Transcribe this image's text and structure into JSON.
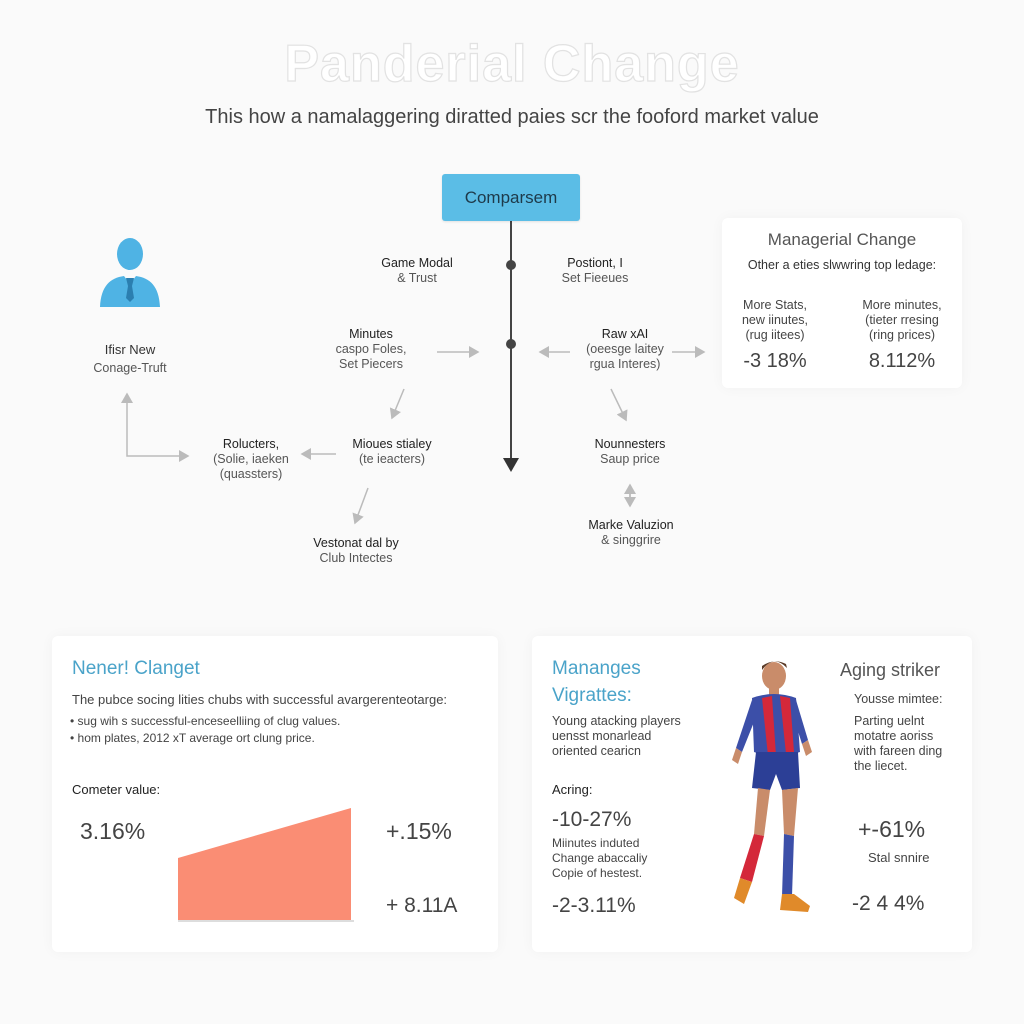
{
  "header": {
    "title": "Panderial Change",
    "subtitle": "This how a namalaggering diratted paies scr the fooford market value"
  },
  "diagram": {
    "root": "Comparsem",
    "person": {
      "line1": "Ifisr New",
      "line2": "Conage-Truft"
    },
    "nodes": {
      "game_model": [
        "Game Modal",
        "& Trust"
      ],
      "position": [
        "Postiont, I",
        "Set Fieeues"
      ],
      "minutes_left": [
        "Minutes",
        "caspo Foles,",
        "Set Piecers"
      ],
      "raw_xai": [
        "Raw xAI",
        "(oeesge laitey",
        "rgua Interes)"
      ],
      "rolecters": [
        "Rolucters,",
        "(Solie, iaeken",
        "(quassters)"
      ],
      "minutes_stay": [
        "Mioues stialey",
        "(te ieacters)"
      ],
      "noun": [
        "Nounnesters",
        "Saup price"
      ],
      "vestonat": [
        "Vestonat dal by",
        "Club Intectes"
      ],
      "market": [
        "Marke Valuzion",
        "& singgrire"
      ]
    }
  },
  "managerial_card": {
    "title": "Managerial Change",
    "subtitle": "Other a eties slwwring top ledage:",
    "col1": [
      "More Stats,",
      "new iinutes,",
      "(rug iitees)"
    ],
    "col2": [
      "More minutes,",
      "(tieter rresing",
      "(ring prices)"
    ],
    "val1": "-3 18%",
    "val2": "8.112%"
  },
  "general_card": {
    "heading": "Nener! Clanget",
    "desc": "The pubce socing lities chubs with successful avargerenteotarge:",
    "bullets": [
      "• sug wih s successful-enceseelliing of clug values.",
      "• hom plates, 2012 xT average ort clung price."
    ],
    "metric_label": "Cometer value:",
    "metric_value": "3.16%",
    "right_value_1": "+.15%",
    "right_value_2": "+ 8.11A",
    "accent": "#fa8d74"
  },
  "managers_card": {
    "heading1": "Mananges",
    "heading2": "Vigrattes:",
    "desc": [
      "Young atacking players",
      "uensst monarlead",
      "oriented cearicn"
    ],
    "label": "Acring:",
    "value1": "-10-27%",
    "desc2": [
      "Miinutes induted",
      "Change abaccaliy",
      "Copie of hestest."
    ],
    "value2": "-2-3.11%"
  },
  "striker_card": {
    "heading": "Aging striker",
    "sub": "Yousse mimtee:",
    "desc": [
      "Parting uelnt",
      "motatre aoriss",
      "with fareen ding",
      "the liecet."
    ],
    "value1": "+-61%",
    "label2": "Stal snnire",
    "value2": "-2 4 4%"
  },
  "icons": [
    "person-icon",
    "soccer-player-figure"
  ],
  "colors": {
    "root_node": "#5bbde6",
    "person": "#4fb3e4",
    "chart_fill": "#fa8d74",
    "heading_blue": "#4aa3c9"
  }
}
